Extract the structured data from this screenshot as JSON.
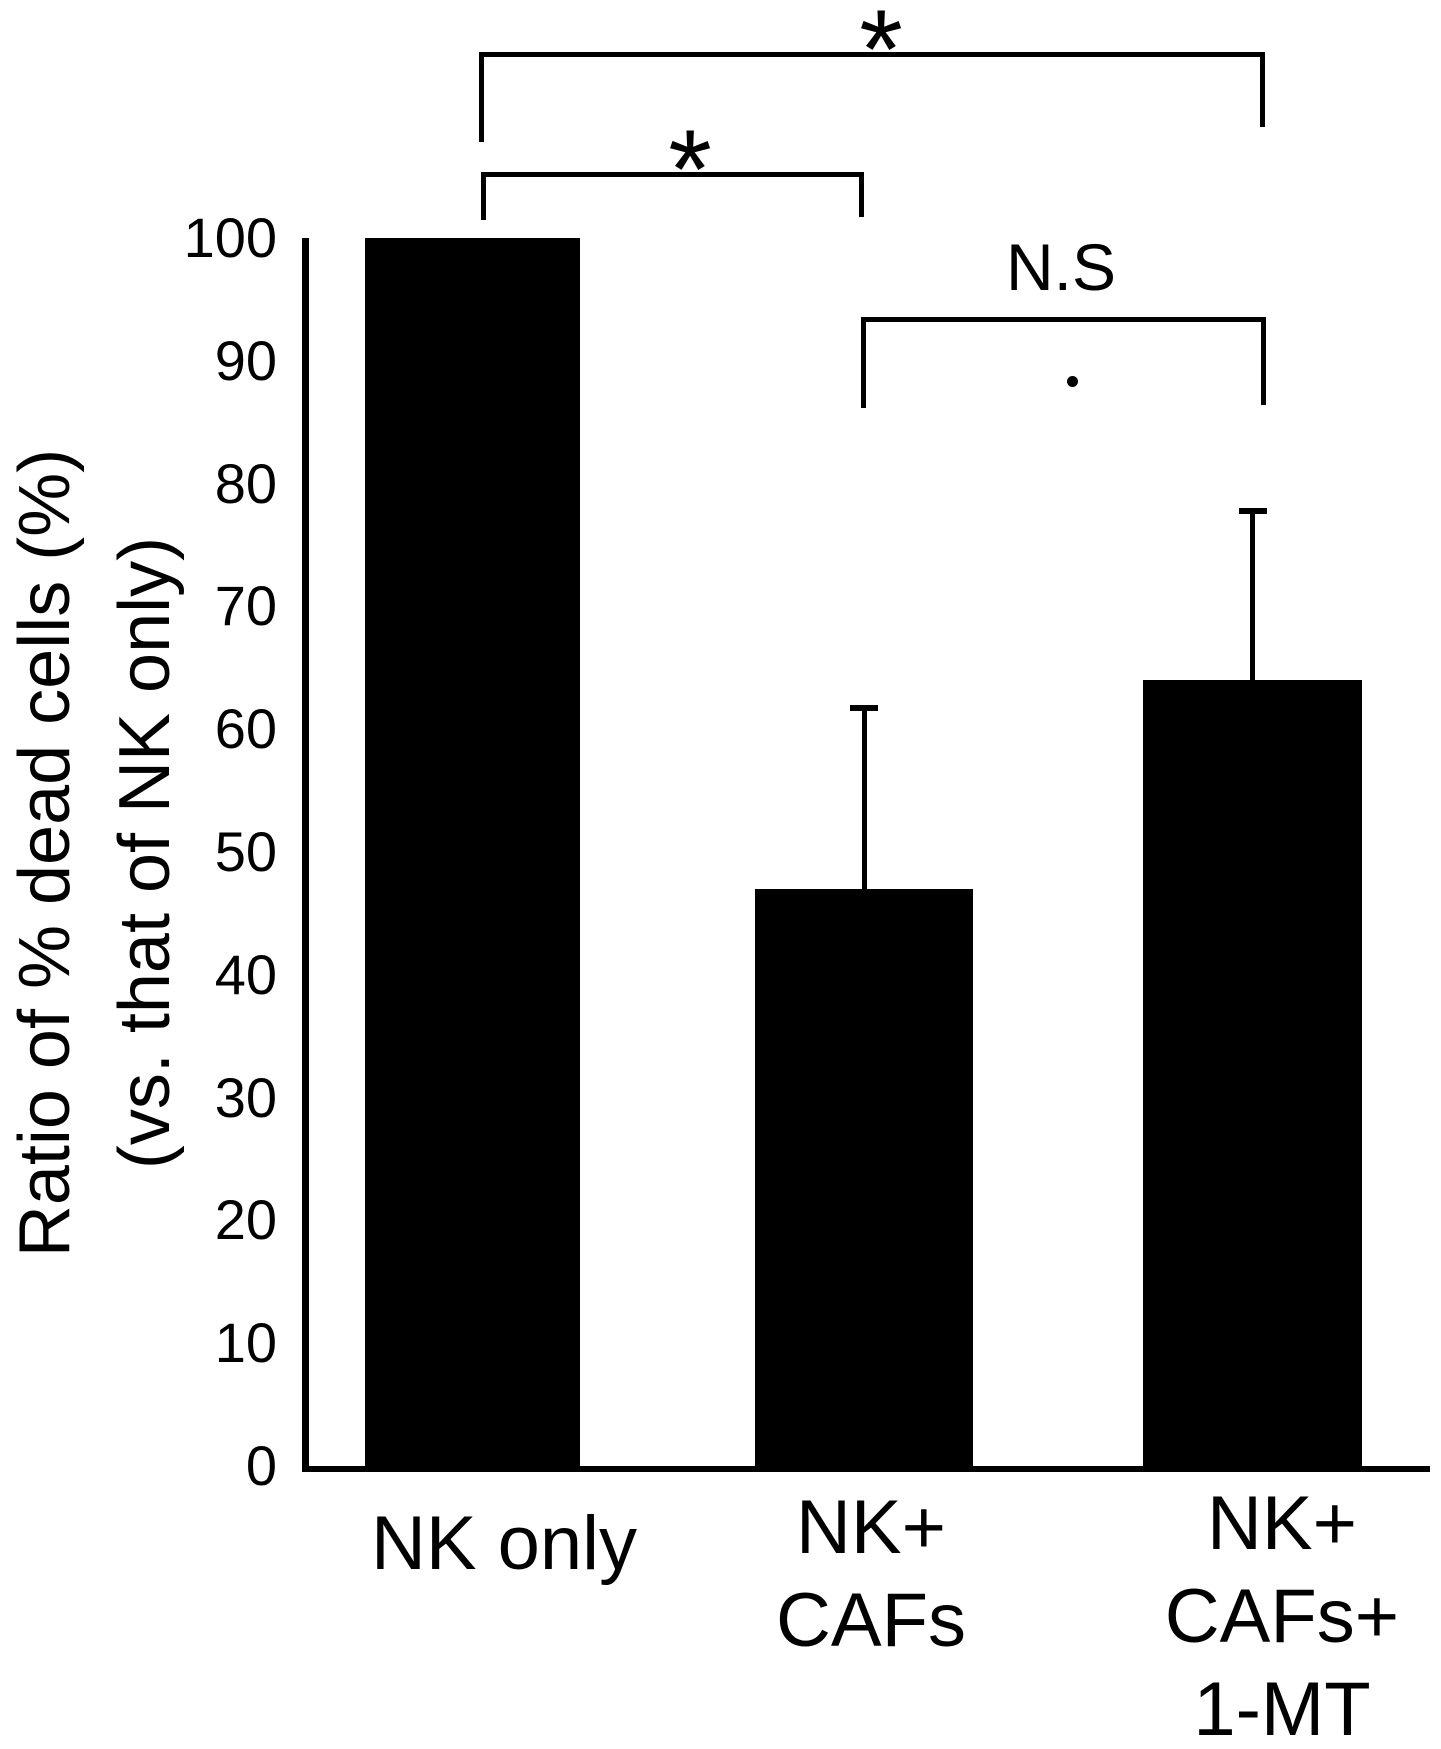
{
  "figure": {
    "background_color": "#ffffff",
    "ink_color": "#000000"
  },
  "chart_data": {
    "type": "bar",
    "title": "",
    "ylabel_lines": [
      "Ratio of % dead cells (%)",
      "(vs. that of NK only)"
    ],
    "xlabel": "",
    "ylim": [
      0,
      100
    ],
    "yticks": [
      100,
      90,
      80,
      70,
      60,
      50,
      40,
      30,
      20,
      10,
      0
    ],
    "grid": false,
    "legend": null,
    "bar_color": "#000000",
    "categories": [
      "NK only",
      "NK+\nCAFs",
      "NK+\nCAFs+\n1-MT"
    ],
    "values": [
      100,
      47,
      64
    ],
    "error_plus": [
      0,
      15,
      14
    ],
    "error_cap_values": [
      null,
      62,
      78
    ],
    "significance_brackets": [
      {
        "pair": [
          0,
          2
        ],
        "label": "*"
      },
      {
        "pair": [
          0,
          1
        ],
        "label": "*"
      },
      {
        "pair": [
          1,
          2
        ],
        "label": "N.S"
      }
    ],
    "stray_mark": "."
  }
}
